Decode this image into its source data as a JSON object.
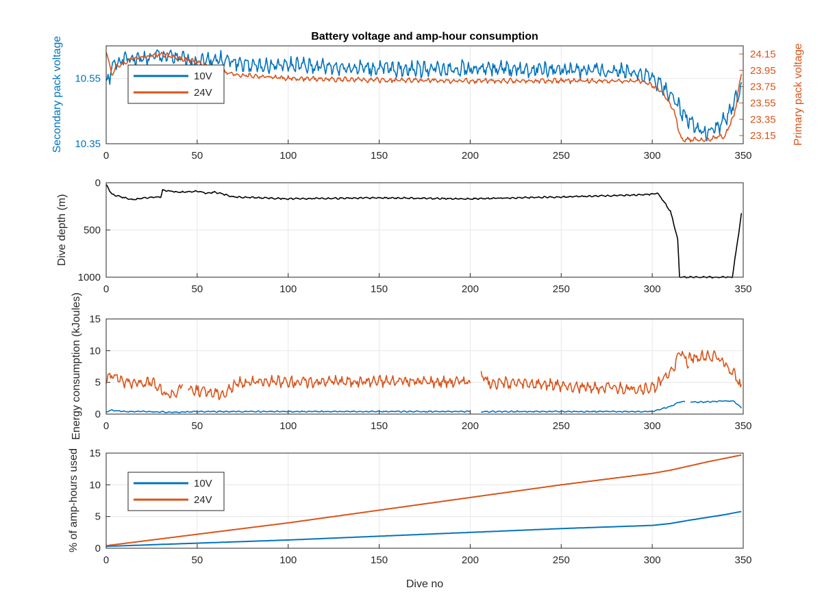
{
  "figure": {
    "title": "Battery voltage and amp-hour consumption",
    "xlabel": "Dive no"
  },
  "colors": {
    "c10": "#0072BD",
    "c24": "#D95319",
    "depth": "#000000",
    "grid": "#e6e6e6",
    "axis": "#262626"
  },
  "chart_data": [
    {
      "type": "line",
      "panel": "voltage",
      "ylabel_left": "Secondary pack voltage",
      "ylabel_right": "Primary pack voltage",
      "xlim": [
        0,
        350
      ],
      "x_ticks": [
        "0",
        "50",
        "100",
        "150",
        "200",
        "250",
        "300",
        "350"
      ],
      "ylim_left": [
        10.35,
        10.65
      ],
      "yticks_left": [
        "10.35",
        "10.55"
      ],
      "ylim_right": [
        23.05,
        24.25
      ],
      "yticks_right": [
        "23.15",
        "23.35",
        "23.55",
        "23.75",
        "23.95",
        "24.15"
      ],
      "legend": {
        "position": "top-left",
        "entries": [
          "10V",
          "24V"
        ]
      },
      "series": [
        {
          "name": "10V",
          "axis": "left",
          "oscillation": 0.025,
          "x": [
            0,
            5,
            10,
            20,
            30,
            40,
            50,
            60,
            70,
            80,
            100,
            150,
            200,
            250,
            290,
            300,
            310,
            320,
            330,
            340,
            349
          ],
          "y": [
            10.53,
            10.6,
            10.61,
            10.61,
            10.62,
            10.61,
            10.6,
            10.61,
            10.6,
            10.59,
            10.59,
            10.58,
            10.58,
            10.575,
            10.57,
            10.55,
            10.5,
            10.42,
            10.38,
            10.42,
            10.52
          ]
        },
        {
          "name": "24V",
          "axis": "right",
          "oscillation": 0.03,
          "x": [
            0,
            3,
            6,
            15,
            30,
            40,
            50,
            60,
            70,
            100,
            150,
            200,
            250,
            295,
            305,
            312,
            316,
            330,
            340,
            345,
            349
          ],
          "y": [
            24.2,
            23.9,
            24.0,
            24.1,
            24.15,
            24.1,
            24.05,
            23.95,
            23.9,
            23.85,
            23.83,
            23.82,
            23.82,
            23.82,
            23.7,
            23.45,
            23.1,
            23.1,
            23.15,
            23.4,
            23.9
          ]
        }
      ]
    },
    {
      "type": "line",
      "panel": "depth",
      "ylabel": "Dive depth (m)",
      "xlim": [
        0,
        350
      ],
      "x_ticks": [
        "0",
        "50",
        "100",
        "150",
        "200",
        "250",
        "300",
        "350"
      ],
      "ylim": [
        0,
        1000
      ],
      "y_reversed": true,
      "yticks": [
        "0",
        "500",
        "1000"
      ],
      "series": [
        {
          "name": "",
          "oscillation": 8,
          "x": [
            0,
            3,
            10,
            15,
            20,
            30,
            31,
            40,
            50,
            55,
            60,
            70,
            100,
            150,
            200,
            250,
            290,
            300,
            303,
            310,
            314,
            315,
            320,
            330,
            340,
            344,
            347,
            349
          ],
          "y": [
            20,
            120,
            160,
            180,
            160,
            150,
            80,
            100,
            90,
            110,
            100,
            150,
            170,
            160,
            170,
            150,
            130,
            120,
            110,
            300,
            600,
            1000,
            1000,
            1000,
            1000,
            1000,
            600,
            330
          ]
        }
      ]
    },
    {
      "type": "line",
      "panel": "energy",
      "ylabel": "Energy consumption (kJoules)",
      "xlim": [
        0,
        350
      ],
      "x_ticks": [
        "0",
        "50",
        "100",
        "150",
        "200",
        "250",
        "300",
        "350"
      ],
      "ylim": [
        0,
        15
      ],
      "yticks": [
        "0",
        "5",
        "10",
        "15"
      ],
      "series": [
        {
          "name": "10V",
          "oscillation": 0.1,
          "segments": [
            {
              "x": [
                0,
                2,
                10,
                20,
                40,
                50,
                70,
                100,
                150,
                200
              ],
              "y": [
                0.3,
                0.6,
                0.4,
                0.4,
                0.3,
                0.4,
                0.4,
                0.4,
                0.4,
                0.4
              ]
            },
            {
              "x": [
                206,
                250,
                300,
                305,
                310,
                315,
                318
              ],
              "y": [
                0.4,
                0.4,
                0.4,
                0.8,
                1.2,
                1.9,
                2.0
              ]
            },
            {
              "x": [
                321,
                330,
                340,
                345,
                349
              ],
              "y": [
                1.9,
                1.9,
                2.1,
                2.0,
                1.0
              ]
            }
          ]
        },
        {
          "name": "24V",
          "oscillation": 0.9,
          "segments": [
            {
              "x": [
                0,
                3,
                10,
                25,
                33,
                40,
                42
              ],
              "y": [
                5,
                6.5,
                5,
                5,
                3.0,
                3.5,
                5.0
              ]
            },
            {
              "x": [
                45,
                55,
                65,
                70
              ],
              "y": [
                4,
                3.5,
                3.2,
                4.5
              ]
            },
            {
              "x": [
                70,
                100,
                150,
                200
              ],
              "y": [
                5.0,
                5.1,
                5.2,
                5.1
              ]
            },
            {
              "x": [
                206,
                210,
                250,
                280,
                300,
                310,
                316,
                320
              ],
              "y": [
                6.5,
                5,
                4.5,
                4,
                4,
                6.5,
                9.8,
                8.0
              ]
            },
            {
              "x": [
                320,
                335,
                345,
                349
              ],
              "y": [
                8.8,
                9.2,
                6.5,
                4.0
              ]
            }
          ]
        }
      ]
    },
    {
      "type": "line",
      "panel": "amp-hours",
      "ylabel": "% of amp-hours used",
      "xlabel": "Dive no",
      "xlim": [
        0,
        350
      ],
      "x_ticks": [
        "0",
        "50",
        "100",
        "150",
        "200",
        "250",
        "300",
        "350"
      ],
      "ylim": [
        0,
        15
      ],
      "yticks": [
        "0",
        "5",
        "10",
        "15"
      ],
      "legend": {
        "position": "top-left",
        "entries": [
          "10V",
          "24V"
        ]
      },
      "series": [
        {
          "name": "10V",
          "x": [
            0,
            50,
            100,
            150,
            200,
            250,
            300,
            310,
            320,
            340,
            349
          ],
          "y": [
            0.3,
            0.8,
            1.3,
            1.9,
            2.5,
            3.1,
            3.6,
            3.9,
            4.4,
            5.3,
            5.8
          ]
        },
        {
          "name": "24V",
          "x": [
            0,
            50,
            100,
            150,
            200,
            250,
            300,
            310,
            330,
            349
          ],
          "y": [
            0.4,
            2.2,
            4.0,
            6.0,
            8.0,
            10.0,
            11.8,
            12.3,
            13.6,
            14.7
          ]
        }
      ]
    }
  ]
}
